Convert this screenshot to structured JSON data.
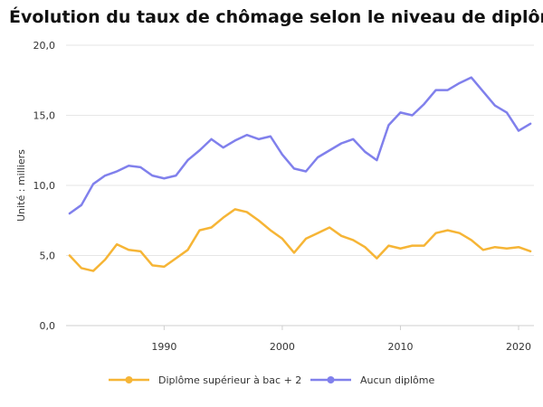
{
  "chart_data": {
    "type": "line",
    "title": "Évolution du taux de chômage selon le niveau de diplôme",
    "ylabel": "Unité : milliers",
    "xlabel": "",
    "ylim": [
      0,
      20
    ],
    "xlim": [
      1981.7,
      2021.3
    ],
    "yticks": [
      "0,0",
      "5,0",
      "10,0",
      "15,0",
      "20,0"
    ],
    "ytick_values": [
      0,
      5,
      10,
      15,
      20
    ],
    "xticks": [
      "1990",
      "2000",
      "2010",
      "2020"
    ],
    "xtick_values": [
      1990,
      2000,
      2010,
      2020
    ],
    "grid": true,
    "legend_position": "bottom",
    "x": [
      1982,
      1983,
      1984,
      1985,
      1986,
      1987,
      1988,
      1989,
      1990,
      1991,
      1992,
      1993,
      1994,
      1995,
      1996,
      1997,
      1998,
      1999,
      2000,
      2001,
      2002,
      2003,
      2004,
      2005,
      2006,
      2007,
      2008,
      2009,
      2010,
      2011,
      2012,
      2013,
      2014,
      2015,
      2016,
      2017,
      2018,
      2019,
      2020,
      2021
    ],
    "series": [
      {
        "name": "Diplôme supérieur à bac + 2",
        "color": "#f6b536",
        "values": [
          5.0,
          4.1,
          3.9,
          4.7,
          5.8,
          5.4,
          5.3,
          4.3,
          4.2,
          4.8,
          5.4,
          6.8,
          7.0,
          7.7,
          8.3,
          8.1,
          7.5,
          6.8,
          6.2,
          5.2,
          6.2,
          6.6,
          7.0,
          6.4,
          6.1,
          5.6,
          4.8,
          5.7,
          5.5,
          5.7,
          5.7,
          6.6,
          6.8,
          6.6,
          6.1,
          5.4,
          5.6,
          5.5,
          5.6,
          5.3
        ]
      },
      {
        "name": "Aucun diplôme",
        "color": "#8080ec",
        "values": [
          8.0,
          8.6,
          10.1,
          10.7,
          11.0,
          11.4,
          11.3,
          10.7,
          10.5,
          10.7,
          11.8,
          12.5,
          13.3,
          12.7,
          13.2,
          13.6,
          13.3,
          13.5,
          12.2,
          11.2,
          11.0,
          12.0,
          12.5,
          13.0,
          13.3,
          12.4,
          11.8,
          14.3,
          15.2,
          15.0,
          15.8,
          16.8,
          16.8,
          17.3,
          17.7,
          16.7,
          15.7,
          15.2,
          13.9,
          14.4
        ]
      }
    ]
  }
}
